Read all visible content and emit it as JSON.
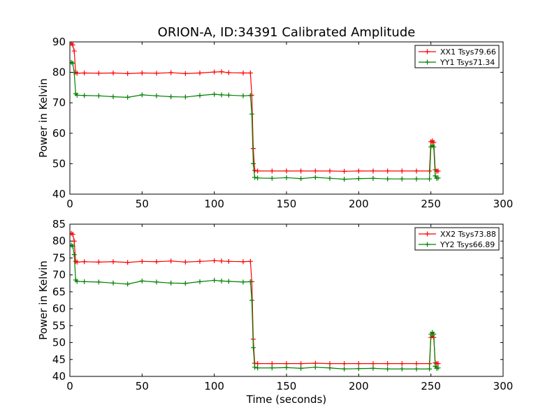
{
  "chart_data": [
    {
      "type": "line",
      "title": "ORION-A, ID:34391 Calibrated Amplitude",
      "xlabel": "",
      "ylabel": "Power in Kelvin",
      "xlim": [
        0,
        300
      ],
      "ylim": [
        40,
        90
      ],
      "xticks": [
        0,
        50,
        100,
        150,
        200,
        250,
        300
      ],
      "yticks": [
        40,
        50,
        60,
        70,
        80,
        90
      ],
      "grid": false,
      "legend_position": "top-right",
      "series": [
        {
          "name": "XX1 Tsys79.66",
          "color": "#ff0000",
          "marker": "plus",
          "x": [
            1,
            2,
            3,
            4,
            5,
            10,
            20,
            30,
            40,
            50,
            60,
            70,
            80,
            90,
            100,
            105,
            110,
            120,
            125,
            126,
            127,
            128,
            130,
            140,
            150,
            160,
            170,
            180,
            190,
            200,
            210,
            220,
            230,
            240,
            249,
            250,
            251,
            252,
            253,
            254,
            255
          ],
          "y": [
            89.5,
            89,
            87,
            80,
            79.7,
            79.8,
            79.7,
            79.8,
            79.6,
            79.8,
            79.7,
            79.9,
            79.6,
            79.8,
            80.1,
            80.2,
            79.9,
            79.8,
            79.8,
            72.5,
            55,
            47.8,
            47.6,
            47.6,
            47.6,
            47.6,
            47.6,
            47.6,
            47.5,
            47.6,
            47.6,
            47.6,
            47.6,
            47.6,
            47.6,
            57.2,
            57.5,
            57,
            48,
            47.5,
            47.6
          ]
        },
        {
          "name": "YY1 Tsys71.34",
          "color": "#008000",
          "marker": "plus",
          "x": [
            1,
            2,
            3,
            4,
            5,
            10,
            20,
            30,
            40,
            50,
            60,
            70,
            80,
            90,
            100,
            105,
            110,
            120,
            125,
            126,
            127,
            128,
            130,
            140,
            150,
            160,
            170,
            180,
            190,
            200,
            210,
            220,
            230,
            240,
            249,
            250,
            251,
            252,
            253,
            254,
            255
          ],
          "y": [
            83.3,
            83,
            80,
            73,
            72.5,
            72.4,
            72.3,
            72,
            71.8,
            72.6,
            72.3,
            72,
            71.9,
            72.4,
            72.8,
            72.6,
            72.5,
            72.3,
            72.4,
            66.3,
            50,
            45.5,
            45.3,
            45.2,
            45.4,
            45.1,
            45.5,
            45.2,
            44.9,
            45.1,
            45.2,
            45,
            45,
            45,
            45,
            55.5,
            56,
            55.5,
            46,
            45.2,
            45.3
          ]
        }
      ]
    },
    {
      "type": "line",
      "title": "",
      "xlabel": "Time (seconds)",
      "ylabel": "Power in Kelvin",
      "xlim": [
        0,
        300
      ],
      "ylim": [
        40,
        85
      ],
      "xticks": [
        0,
        50,
        100,
        150,
        200,
        250,
        300
      ],
      "yticks": [
        40,
        45,
        50,
        55,
        60,
        65,
        70,
        75,
        80,
        85
      ],
      "grid": false,
      "legend_position": "top-right",
      "series": [
        {
          "name": "XX2 Tsys73.88",
          "color": "#ff0000",
          "marker": "plus",
          "x": [
            1,
            2,
            3,
            4,
            5,
            10,
            20,
            30,
            40,
            50,
            60,
            70,
            80,
            90,
            100,
            105,
            110,
            120,
            125,
            126,
            127,
            128,
            130,
            140,
            150,
            160,
            170,
            180,
            190,
            200,
            210,
            220,
            230,
            240,
            249,
            250,
            251,
            252,
            253,
            254,
            255
          ],
          "y": [
            82.3,
            82,
            80,
            74,
            73.8,
            73.9,
            73.8,
            73.9,
            73.7,
            74,
            73.9,
            74.1,
            73.8,
            74,
            74.2,
            74.1,
            74,
            73.9,
            74,
            68,
            51,
            43.9,
            43.8,
            43.8,
            43.8,
            43.8,
            43.9,
            43.8,
            43.8,
            43.8,
            43.8,
            43.8,
            43.8,
            43.8,
            43.8,
            51.5,
            52,
            51.5,
            44,
            43.8,
            43.8
          ]
        },
        {
          "name": "YY2 Tsys66.89",
          "color": "#008000",
          "marker": "plus",
          "x": [
            1,
            2,
            3,
            4,
            5,
            10,
            20,
            30,
            40,
            50,
            60,
            70,
            80,
            90,
            100,
            105,
            110,
            120,
            125,
            126,
            127,
            128,
            130,
            140,
            150,
            160,
            170,
            180,
            190,
            200,
            210,
            220,
            230,
            240,
            249,
            250,
            251,
            252,
            253,
            254,
            255
          ],
          "y": [
            78.8,
            78.5,
            76,
            68.5,
            68.1,
            68,
            67.9,
            67.6,
            67.3,
            68.2,
            67.9,
            67.6,
            67.5,
            68,
            68.4,
            68.2,
            68.1,
            67.9,
            68,
            62.5,
            48.5,
            42.7,
            42.5,
            42.5,
            42.6,
            42.4,
            42.7,
            42.5,
            42.2,
            42.3,
            42.4,
            42.2,
            42.2,
            42.2,
            42.2,
            52.5,
            53,
            52.5,
            43,
            42.4,
            42.5
          ]
        }
      ]
    }
  ]
}
